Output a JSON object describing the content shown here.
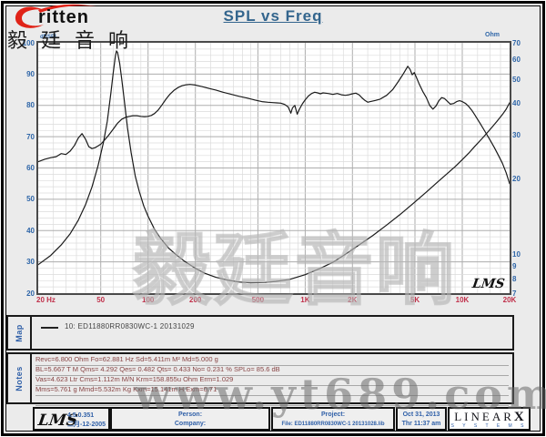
{
  "header": {
    "logo_text": "ritten",
    "logo_cn": "毅廷音响",
    "title": "SPL vs Freq"
  },
  "chart_data": {
    "type": "line",
    "title": "SPL vs Freq",
    "x_axis": {
      "scale": "log",
      "min": 20,
      "max": 20000,
      "unit": "Hz",
      "ticks": [
        {
          "v": 20,
          "label": "20  Hz"
        },
        {
          "v": 50,
          "label": "50"
        },
        {
          "v": 100,
          "label": "100"
        },
        {
          "v": 200,
          "label": "200"
        },
        {
          "v": 500,
          "label": "500"
        },
        {
          "v": 1000,
          "label": "1K"
        },
        {
          "v": 2000,
          "label": "2K"
        },
        {
          "v": 5000,
          "label": "5K"
        },
        {
          "v": 10000,
          "label": "10K"
        },
        {
          "v": 20000,
          "label": "20K"
        }
      ]
    },
    "y_left": {
      "scale": "linear",
      "min": 20,
      "max": 100,
      "unit": "dBSPL",
      "ticks": [
        100,
        90,
        80,
        70,
        60,
        50,
        40,
        30,
        20
      ]
    },
    "y_right": {
      "scale": "log",
      "min": 7,
      "max": 70,
      "unit": "Ohm",
      "ticks": [
        70,
        60,
        50,
        40,
        30,
        20,
        10,
        9,
        8,
        7
      ]
    },
    "grid": true,
    "legend_position": "map-strip-below-chart",
    "series": [
      {
        "name": "SPL 10: ED11880RR0830WC-1 20131029",
        "axis": "left",
        "color": "#1a1a1a",
        "points": [
          [
            20,
            62
          ],
          [
            22,
            62.8
          ],
          [
            24,
            63.3
          ],
          [
            26,
            63.6
          ],
          [
            28,
            64.6
          ],
          [
            30,
            64.3
          ],
          [
            32,
            65.4
          ],
          [
            34,
            67.2
          ],
          [
            36,
            69.6
          ],
          [
            38,
            71
          ],
          [
            40,
            69.2
          ],
          [
            42,
            66.8
          ],
          [
            44,
            66.2
          ],
          [
            46,
            66.5
          ],
          [
            48,
            67
          ],
          [
            50,
            67.6
          ],
          [
            53,
            69
          ],
          [
            56,
            70.4
          ],
          [
            60,
            72.4
          ],
          [
            64,
            74.3
          ],
          [
            68,
            75.6
          ],
          [
            72,
            76.2
          ],
          [
            76,
            76.5
          ],
          [
            80,
            76.7
          ],
          [
            85,
            76.7
          ],
          [
            90,
            76.5
          ],
          [
            95,
            76.4
          ],
          [
            100,
            76.5
          ],
          [
            105,
            76.8
          ],
          [
            110,
            77.4
          ],
          [
            116,
            78.5
          ],
          [
            122,
            80
          ],
          [
            130,
            82
          ],
          [
            138,
            83.6
          ],
          [
            146,
            84.8
          ],
          [
            155,
            85.7
          ],
          [
            165,
            86.3
          ],
          [
            175,
            86.6
          ],
          [
            185,
            86.7
          ],
          [
            200,
            86.5
          ],
          [
            220,
            86
          ],
          [
            245,
            85.4
          ],
          [
            270,
            84.9
          ],
          [
            300,
            84.2
          ],
          [
            340,
            83.5
          ],
          [
            380,
            82.9
          ],
          [
            430,
            82.3
          ],
          [
            480,
            81.7
          ],
          [
            530,
            81.2
          ],
          [
            580,
            81
          ],
          [
            620,
            80.9
          ],
          [
            660,
            80.8
          ],
          [
            700,
            80.7
          ],
          [
            740,
            80.3
          ],
          [
            780,
            79.5
          ],
          [
            810,
            77.5
          ],
          [
            830,
            79.2
          ],
          [
            860,
            80
          ],
          [
            890,
            77.2
          ],
          [
            920,
            78.8
          ],
          [
            960,
            80.5
          ],
          [
            1000,
            81.8
          ],
          [
            1050,
            83
          ],
          [
            1100,
            83.8
          ],
          [
            1150,
            84.2
          ],
          [
            1200,
            84
          ],
          [
            1250,
            83.7
          ],
          [
            1300,
            84
          ],
          [
            1400,
            83.8
          ],
          [
            1500,
            83.5
          ],
          [
            1600,
            83.8
          ],
          [
            1700,
            83.4
          ],
          [
            1800,
            83.2
          ],
          [
            1900,
            83.4
          ],
          [
            2000,
            83.7
          ],
          [
            2100,
            83.9
          ],
          [
            2200,
            83.4
          ],
          [
            2300,
            82.4
          ],
          [
            2400,
            81.6
          ],
          [
            2500,
            81
          ],
          [
            2600,
            81.2
          ],
          [
            2800,
            81.6
          ],
          [
            3000,
            82
          ],
          [
            3300,
            83.2
          ],
          [
            3600,
            85
          ],
          [
            3900,
            87.5
          ],
          [
            4200,
            90
          ],
          [
            4500,
            92.5
          ],
          [
            4650,
            91.5
          ],
          [
            4800,
            89.8
          ],
          [
            4950,
            90.5
          ],
          [
            5100,
            89
          ],
          [
            5300,
            87
          ],
          [
            5600,
            84.5
          ],
          [
            5900,
            82.5
          ],
          [
            6200,
            80
          ],
          [
            6500,
            78.8
          ],
          [
            6800,
            79.8
          ],
          [
            7100,
            81.5
          ],
          [
            7400,
            82.5
          ],
          [
            7700,
            82.2
          ],
          [
            8000,
            81.4
          ],
          [
            8400,
            80.4
          ],
          [
            8800,
            80.6
          ],
          [
            9200,
            81.2
          ],
          [
            9600,
            81.5
          ],
          [
            10000,
            81.2
          ],
          [
            10500,
            80.6
          ],
          [
            11000,
            79.6
          ],
          [
            11500,
            78.4
          ],
          [
            12000,
            77
          ],
          [
            13000,
            74.2
          ],
          [
            14000,
            71.5
          ],
          [
            15000,
            69
          ],
          [
            16000,
            66.5
          ],
          [
            17000,
            64
          ],
          [
            18000,
            61.5
          ],
          [
            19000,
            58.5
          ],
          [
            20000,
            55
          ]
        ]
      },
      {
        "name": "Impedance",
        "axis": "right",
        "color": "#1a1a1a",
        "points": [
          [
            20,
            9.1
          ],
          [
            24,
            9.9
          ],
          [
            28,
            10.9
          ],
          [
            32,
            12.1
          ],
          [
            36,
            13.7
          ],
          [
            40,
            15.8
          ],
          [
            44,
            18.6
          ],
          [
            48,
            22.5
          ],
          [
            52,
            28
          ],
          [
            55,
            34
          ],
          [
            58,
            44
          ],
          [
            60,
            53
          ],
          [
            62,
            62
          ],
          [
            63,
            65
          ],
          [
            64,
            64
          ],
          [
            66,
            58
          ],
          [
            68,
            50
          ],
          [
            71,
            40
          ],
          [
            74,
            32
          ],
          [
            78,
            25.5
          ],
          [
            83,
            20.5
          ],
          [
            88,
            17.8
          ],
          [
            94,
            15.6
          ],
          [
            100,
            14.2
          ],
          [
            110,
            12.6
          ],
          [
            120,
            11.6
          ],
          [
            135,
            10.6
          ],
          [
            150,
            10
          ],
          [
            170,
            9.4
          ],
          [
            200,
            8.8
          ],
          [
            230,
            8.4
          ],
          [
            270,
            8.1
          ],
          [
            320,
            7.9
          ],
          [
            380,
            7.75
          ],
          [
            450,
            7.7
          ],
          [
            550,
            7.72
          ],
          [
            650,
            7.8
          ],
          [
            800,
            7.95
          ],
          [
            1000,
            8.3
          ],
          [
            1250,
            8.8
          ],
          [
            1500,
            9.3
          ],
          [
            1800,
            10
          ],
          [
            2200,
            10.9
          ],
          [
            2700,
            11.9
          ],
          [
            3300,
            13.1
          ],
          [
            4000,
            14.4
          ],
          [
            5000,
            16.2
          ],
          [
            6000,
            17.9
          ],
          [
            7000,
            19.5
          ],
          [
            8000,
            21
          ],
          [
            9000,
            22.4
          ],
          [
            10000,
            23.9
          ],
          [
            11000,
            25.4
          ],
          [
            12000,
            27
          ],
          [
            13500,
            29.2
          ],
          [
            15000,
            31.5
          ],
          [
            16500,
            33.8
          ],
          [
            18000,
            36.2
          ],
          [
            19000,
            38
          ],
          [
            20000,
            40.3
          ]
        ]
      }
    ]
  },
  "map_section": {
    "tab": "Map",
    "legend": "10: ED11880RR0830WC-1   20131029"
  },
  "notes_section": {
    "tab": "Notes",
    "lines": [
      "Revc=6.800 Ohm  Fo=62.881 Hz  Sd=5.411m M²  Md=5.000 g",
      "BL=5.667 T M  Qms= 4.292  Qes= 0.482  Qts= 0.433  No= 0.231 %  SPLo= 85.6 dB",
      "Vas=4.623 Ltr  Cms=1.112m M/N  Krm=158.855u Ohm  Erm=1.029",
      "Mms=5.761 g  Mmd=5.532m Kg  Kxm=15.141m H  Exm=0.71"
    ]
  },
  "footer": {
    "lms_logo": "LMS",
    "version": "4.5.0.351",
    "version_date": "二月-12-2005",
    "person_label": "Person:",
    "company_label": "Company:",
    "project_label": "Project:",
    "file_line": "File: ED11880RR0830WC-1  20131028.lib",
    "date": "Oct 31, 2013",
    "time": "Thr 11:37 am",
    "linearx_line1_a": "LINEAR",
    "linearx_line1_b": "X",
    "linearx_line2": "S Y S T E M S"
  },
  "branding": {
    "lms_chart_mark": "LMS"
  },
  "watermarks": {
    "chart_cn": "毅廷音响",
    "url": "www.yt689.com"
  }
}
